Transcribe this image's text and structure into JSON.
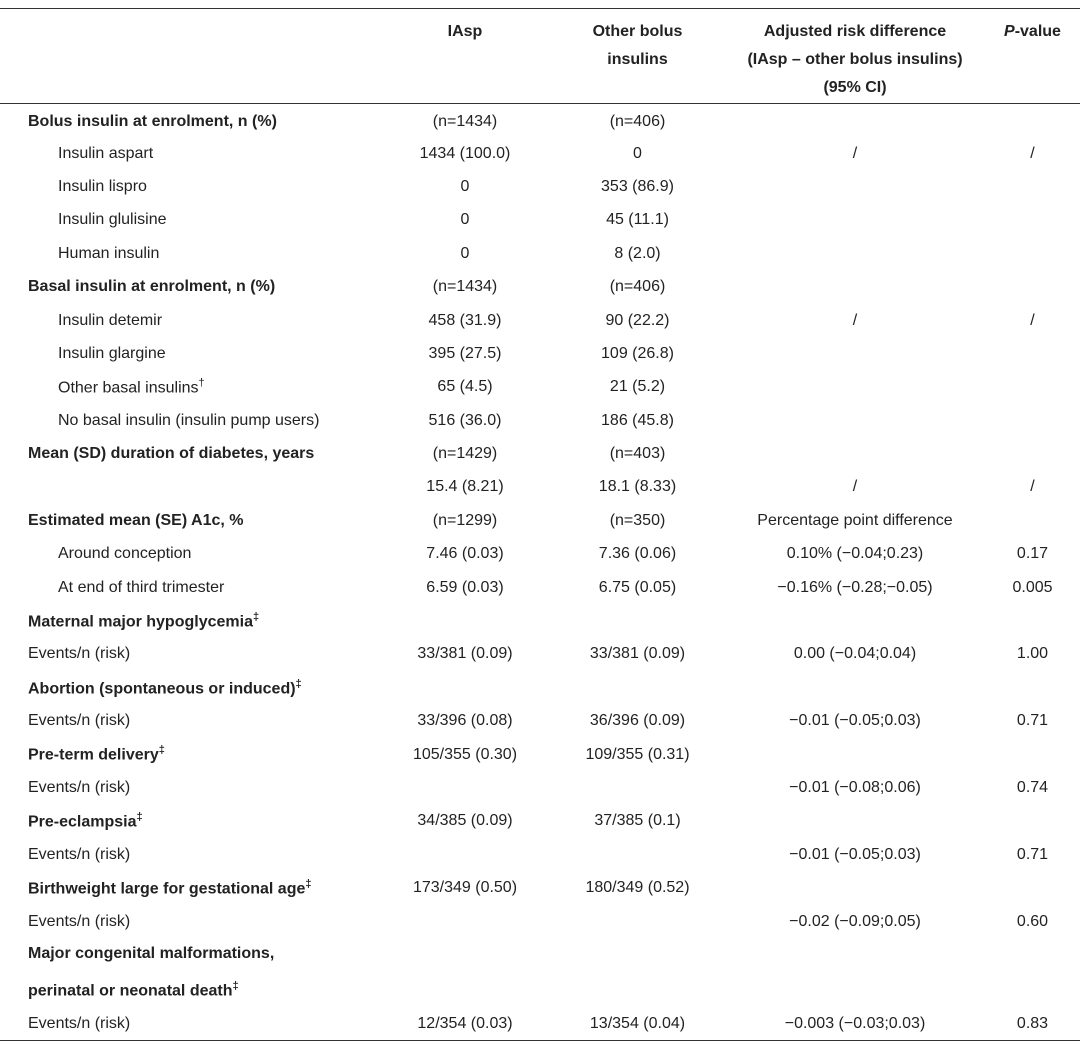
{
  "table": {
    "header": [
      [
        "IAsp"
      ],
      [
        "Other bolus",
        "insulins"
      ],
      [
        "Adjusted risk difference",
        "(IAsp – other bolus insulins)",
        "(95% CI)"
      ],
      {
        "italic": "P",
        "rest": "-value"
      }
    ],
    "rows": [
      {
        "style": "heading",
        "cells": [
          "Bolus insulin at enrolment, n (%)",
          "(n=1434)",
          "(n=406)",
          null,
          null
        ]
      },
      {
        "style": "sub",
        "cells": [
          "Insulin aspart",
          "1434 (100.0)",
          "0",
          "/",
          "/"
        ]
      },
      {
        "style": "sub",
        "cells": [
          "Insulin lispro",
          "0",
          "353 (86.9)",
          null,
          null
        ]
      },
      {
        "style": "sub",
        "cells": [
          "Insulin glulisine",
          "0",
          "45 (11.1)",
          null,
          null
        ]
      },
      {
        "style": "sub",
        "cells": [
          "Human insulin",
          "0",
          "8 (2.0)",
          null,
          null
        ]
      },
      {
        "style": "heading",
        "cells": [
          "Basal insulin at enrolment, n (%)",
          "(n=1434)",
          "(n=406)",
          null,
          null
        ]
      },
      {
        "style": "sub",
        "cells": [
          "Insulin detemir",
          "458 (31.9)",
          "90 (22.2)",
          "/",
          "/"
        ]
      },
      {
        "style": "sub",
        "cells": [
          "Insulin glargine",
          "395 (27.5)",
          "109 (26.8)",
          null,
          null
        ]
      },
      {
        "style": "sub",
        "sup": "†",
        "cells": [
          "Other basal insulins",
          "65 (4.5)",
          "21 (5.2)",
          null,
          null
        ]
      },
      {
        "style": "sub",
        "cells": [
          "No basal insulin (insulin pump users)",
          "516 (36.0)",
          "186 (45.8)",
          null,
          null
        ]
      },
      {
        "style": "heading",
        "cells": [
          "Mean (SD) duration of diabetes, years",
          "(n=1429)",
          "(n=403)",
          null,
          null
        ]
      },
      {
        "style": "plain",
        "cells": [
          null,
          "15.4 (8.21)",
          "18.1 (8.33)",
          "/",
          "/"
        ]
      },
      {
        "style": "heading",
        "cells": [
          "Estimated mean (SE) A1c, %",
          "(n=1299)",
          "(n=350)",
          "Percentage point difference",
          null
        ]
      },
      {
        "style": "sub",
        "cells": [
          "Around conception",
          "7.46 (0.03)",
          "7.36 (0.06)",
          "0.10% (−0.04;0.23)",
          "0.17"
        ]
      },
      {
        "style": "sub",
        "cells": [
          "At end of third trimester",
          "6.59 (0.03)",
          "6.75 (0.05)",
          "−0.16% (−0.28;−0.05)",
          "0.005"
        ]
      },
      {
        "style": "heading",
        "sup": "‡",
        "cells": [
          "Maternal major hypoglycemia",
          null,
          null,
          null,
          null
        ]
      },
      {
        "style": "plain",
        "cells": [
          "Events/n (risk)",
          "33/381 (0.09)",
          "33/381 (0.09)",
          "0.00 (−0.04;0.04)",
          "1.00"
        ]
      },
      {
        "style": "heading",
        "sup": "‡",
        "cells": [
          "Abortion (spontaneous or induced)",
          null,
          null,
          null,
          null
        ]
      },
      {
        "style": "plain",
        "cells": [
          "Events/n (risk)",
          "33/396 (0.08)",
          "36/396 (0.09)",
          "−0.01 (−0.05;0.03)",
          "0.71"
        ]
      },
      {
        "style": "heading",
        "sup": "‡",
        "cells": [
          "Pre-term delivery",
          "105/355 (0.30)",
          "109/355 (0.31)",
          null,
          null
        ]
      },
      {
        "style": "plain",
        "cells": [
          "Events/n (risk)",
          null,
          null,
          "−0.01 (−0.08;0.06)",
          "0.74"
        ]
      },
      {
        "style": "heading",
        "sup": "‡",
        "cells": [
          "Pre-eclampsia",
          "34/385 (0.09)",
          "37/385 (0.1)",
          null,
          null
        ]
      },
      {
        "style": "plain",
        "cells": [
          "Events/n (risk)",
          null,
          null,
          "−0.01 (−0.05;0.03)",
          "0.71"
        ]
      },
      {
        "style": "heading",
        "sup": "‡",
        "cells": [
          "Birthweight large for gestational age",
          "173/349 (0.50)",
          "180/349 (0.52)",
          null,
          null
        ]
      },
      {
        "style": "plain",
        "cells": [
          "Events/n (risk)",
          null,
          null,
          "−0.02 (−0.09;0.05)",
          "0.60"
        ]
      },
      {
        "style": "heading",
        "sup": "‡",
        "cells": [
          [
            "Major congenital malformations,",
            "perinatal or neonatal death"
          ],
          null,
          null,
          null,
          null
        ]
      },
      {
        "style": "plain",
        "cells": [
          "Events/n (risk)",
          "12/354 (0.03)",
          "13/354 (0.04)",
          "−0.003 (−0.03;0.03)",
          "0.83"
        ]
      }
    ]
  }
}
